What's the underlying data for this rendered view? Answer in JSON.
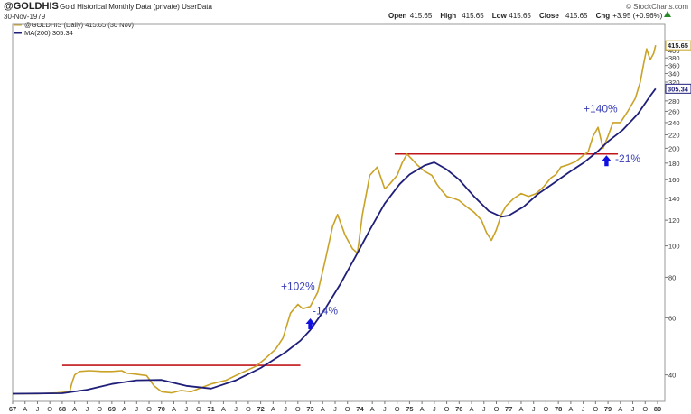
{
  "header": {
    "symbol": "@GOLDHIS",
    "subtitle": "Gold Historical Monthly Data (private) UserData",
    "date": "30-Nov-1979",
    "watermark": "© StockCharts.com",
    "ohlc": [
      {
        "label": "Open",
        "value": "415.65"
      },
      {
        "label": "High",
        "value": "415.65"
      },
      {
        "label": "Low",
        "value": "415.65"
      },
      {
        "label": "Close",
        "value": "415.65"
      },
      {
        "label": "Chg",
        "value": "+3.95 (+0.96%)"
      }
    ],
    "change_arrow": "up-arrow-icon"
  },
  "legend": [
    {
      "text": "@GOLDHIS (Daily) 415.65 (30 Nov)",
      "color": "#c9a227"
    },
    {
      "text": "MA(200) 305.34",
      "color": "#1f1f7a"
    }
  ],
  "colors": {
    "price": "#c9a227",
    "ma": "#1f1f7a",
    "resistance": "#c0161c",
    "annotation": "#3a3fb5",
    "arrow": "#1010e0",
    "axis_text": "#333333"
  },
  "chart_data": {
    "type": "line",
    "y_scale": "log",
    "ylim": [
      34,
      470
    ],
    "x_range": [
      1967.0,
      1980.0
    ],
    "y_ticks": [
      40,
      60,
      80,
      100,
      120,
      140,
      160,
      180,
      200,
      220,
      240,
      260,
      280,
      300,
      320,
      340,
      360,
      380,
      400
    ],
    "y_tick_labels": [
      "40",
      "60",
      "80",
      "100",
      "120",
      "140",
      "160",
      "180",
      "200",
      "220",
      "240",
      "260",
      "280",
      "",
      "320",
      "340",
      "360",
      "380",
      "400"
    ],
    "last_value_labels": [
      {
        "value": 415.65,
        "text": "415.65",
        "series": "price"
      },
      {
        "value": 305.34,
        "text": "305.34",
        "series": "ma"
      }
    ],
    "x_ticks": [
      {
        "year": 1967,
        "labels": [
          "67",
          "A",
          "J",
          "O"
        ]
      },
      {
        "year": 1968,
        "labels": [
          "68",
          "A",
          "J",
          "O"
        ]
      },
      {
        "year": 1969,
        "labels": [
          "69",
          "A",
          "J",
          "O"
        ]
      },
      {
        "year": 1970,
        "labels": [
          "70",
          "A",
          "J",
          "O"
        ]
      },
      {
        "year": 1971,
        "labels": [
          "71",
          "A",
          "J",
          "O"
        ]
      },
      {
        "year": 1972,
        "labels": [
          "72",
          "A",
          "J",
          "O"
        ]
      },
      {
        "year": 1973,
        "labels": [
          "73",
          "A",
          "J",
          "O"
        ]
      },
      {
        "year": 1974,
        "labels": [
          "74",
          "A",
          "J",
          "O"
        ]
      },
      {
        "year": 1975,
        "labels": [
          "75",
          "A",
          "J",
          "O"
        ]
      },
      {
        "year": 1976,
        "labels": [
          "76",
          "A",
          "J",
          "O"
        ]
      },
      {
        "year": 1977,
        "labels": [
          "77",
          "A",
          "J",
          "O"
        ]
      },
      {
        "year": 1978,
        "labels": [
          "78",
          "A",
          "J",
          "O"
        ]
      },
      {
        "year": 1979,
        "labels": [
          "79",
          "A",
          "J",
          "O"
        ]
      },
      {
        "year": 1980,
        "labels": [
          "80"
        ]
      }
    ],
    "series": [
      {
        "name": "@GOLDHIS",
        "values": [
          [
            1967.0,
            35
          ],
          [
            1967.5,
            35
          ],
          [
            1967.9,
            35.2
          ],
          [
            1968.15,
            35.5
          ],
          [
            1968.2,
            38
          ],
          [
            1968.25,
            40
          ],
          [
            1968.35,
            41
          ],
          [
            1968.55,
            41.2
          ],
          [
            1968.8,
            41
          ],
          [
            1969.0,
            41
          ],
          [
            1969.2,
            41.2
          ],
          [
            1969.3,
            40.5
          ],
          [
            1969.5,
            40.2
          ],
          [
            1969.7,
            39.8
          ],
          [
            1969.85,
            37
          ],
          [
            1970.0,
            35.5
          ],
          [
            1970.2,
            35.2
          ],
          [
            1970.4,
            35.8
          ],
          [
            1970.6,
            35.5
          ],
          [
            1970.8,
            36.5
          ],
          [
            1971.0,
            37.5
          ],
          [
            1971.3,
            38.5
          ],
          [
            1971.6,
            40.5
          ],
          [
            1971.9,
            42.5
          ],
          [
            1972.1,
            45
          ],
          [
            1972.3,
            48
          ],
          [
            1972.45,
            52
          ],
          [
            1972.6,
            62
          ],
          [
            1972.75,
            66
          ],
          [
            1972.85,
            64
          ],
          [
            1973.0,
            65
          ],
          [
            1973.15,
            72
          ],
          [
            1973.3,
            90
          ],
          [
            1973.45,
            115
          ],
          [
            1973.55,
            125
          ],
          [
            1973.7,
            108
          ],
          [
            1973.85,
            98
          ],
          [
            1973.95,
            95
          ],
          [
            1974.05,
            125
          ],
          [
            1974.2,
            165
          ],
          [
            1974.35,
            175
          ],
          [
            1974.5,
            150
          ],
          [
            1974.6,
            155
          ],
          [
            1974.75,
            165
          ],
          [
            1974.85,
            180
          ],
          [
            1974.95,
            192
          ],
          [
            1975.05,
            185
          ],
          [
            1975.15,
            178
          ],
          [
            1975.3,
            170
          ],
          [
            1975.45,
            165
          ],
          [
            1975.55,
            155
          ],
          [
            1975.65,
            148
          ],
          [
            1975.75,
            142
          ],
          [
            1975.9,
            140
          ],
          [
            1976.0,
            138
          ],
          [
            1976.15,
            132
          ],
          [
            1976.3,
            127
          ],
          [
            1976.45,
            120
          ],
          [
            1976.55,
            110
          ],
          [
            1976.65,
            104
          ],
          [
            1976.75,
            112
          ],
          [
            1976.85,
            125
          ],
          [
            1976.95,
            133
          ],
          [
            1977.1,
            140
          ],
          [
            1977.25,
            145
          ],
          [
            1977.4,
            142
          ],
          [
            1977.55,
            145
          ],
          [
            1977.7,
            152
          ],
          [
            1977.85,
            162
          ],
          [
            1977.95,
            166
          ],
          [
            1978.05,
            175
          ],
          [
            1978.2,
            178
          ],
          [
            1978.35,
            182
          ],
          [
            1978.5,
            190
          ],
          [
            1978.6,
            195
          ],
          [
            1978.7,
            218
          ],
          [
            1978.8,
            232
          ],
          [
            1978.9,
            200
          ],
          [
            1979.0,
            218
          ],
          [
            1979.1,
            240
          ],
          [
            1979.25,
            240
          ],
          [
            1979.4,
            260
          ],
          [
            1979.55,
            285
          ],
          [
            1979.65,
            320
          ],
          [
            1979.72,
            365
          ],
          [
            1979.78,
            405
          ],
          [
            1979.85,
            375
          ],
          [
            1979.92,
            392
          ],
          [
            1979.96,
            415.65
          ]
        ]
      },
      {
        "name": "MA(200)",
        "values": [
          [
            1967.0,
            35
          ],
          [
            1968.0,
            35.1
          ],
          [
            1968.5,
            36
          ],
          [
            1969.0,
            37.5
          ],
          [
            1969.5,
            38.5
          ],
          [
            1970.0,
            38.6
          ],
          [
            1970.5,
            37
          ],
          [
            1971.0,
            36.3
          ],
          [
            1971.5,
            38.5
          ],
          [
            1972.0,
            42
          ],
          [
            1972.5,
            47
          ],
          [
            1972.8,
            51
          ],
          [
            1973.0,
            55
          ],
          [
            1973.3,
            64
          ],
          [
            1973.6,
            76
          ],
          [
            1973.9,
            92
          ],
          [
            1974.2,
            112
          ],
          [
            1974.5,
            135
          ],
          [
            1974.8,
            155
          ],
          [
            1975.0,
            166
          ],
          [
            1975.3,
            177
          ],
          [
            1975.5,
            181
          ],
          [
            1975.75,
            172
          ],
          [
            1976.0,
            160
          ],
          [
            1976.3,
            142
          ],
          [
            1976.6,
            128
          ],
          [
            1976.85,
            123
          ],
          [
            1977.0,
            124
          ],
          [
            1977.3,
            132
          ],
          [
            1977.6,
            145
          ],
          [
            1977.9,
            156
          ],
          [
            1978.2,
            168
          ],
          [
            1978.5,
            180
          ],
          [
            1978.8,
            196
          ],
          [
            1979.0,
            210
          ],
          [
            1979.3,
            228
          ],
          [
            1979.6,
            255
          ],
          [
            1979.85,
            290
          ],
          [
            1979.96,
            305.34
          ]
        ]
      }
    ],
    "resistance_lines": [
      {
        "x_start": 1968.0,
        "x_end": 1972.8,
        "y": 42.8
      },
      {
        "x_start": 1974.7,
        "x_end": 1979.2,
        "y": 192
      }
    ],
    "annotations": [
      {
        "text": "+102%",
        "x": 1972.75,
        "y": 73
      },
      {
        "text": "-14%",
        "x": 1973.3,
        "y": 61.5
      },
      {
        "text": "+140%",
        "x": 1978.85,
        "y": 258
      },
      {
        "text": "-21%",
        "x": 1979.4,
        "y": 181
      }
    ],
    "arrows": [
      {
        "x": 1973.0,
        "y": 57.5
      },
      {
        "x": 1978.97,
        "y": 183
      }
    ],
    "grid": false,
    "legend_position": "top-left"
  }
}
